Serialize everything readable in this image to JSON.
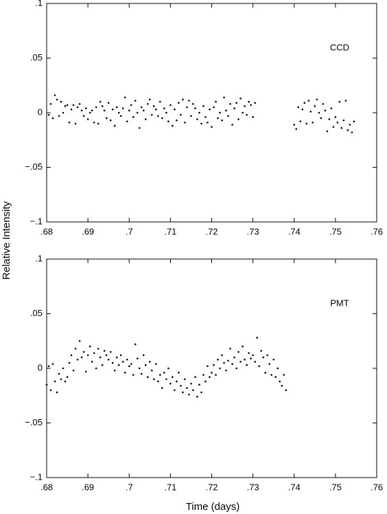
{
  "chart_data": [
    {
      "type": "scatter",
      "label": "CCD",
      "ylabel": "Relative Intensity",
      "color": "#000000",
      "xlim": [
        0.68,
        0.76
      ],
      "ylim": [
        -0.1,
        0.1
      ],
      "xticks": [
        {
          "value": 0.68,
          "label": ".68"
        },
        {
          "value": 0.69,
          "label": ".69"
        },
        {
          "value": 0.7,
          "label": ".7"
        },
        {
          "value": 0.71,
          "label": ".71"
        },
        {
          "value": 0.72,
          "label": ".72"
        },
        {
          "value": 0.73,
          "label": ".73"
        },
        {
          "value": 0.74,
          "label": ".74"
        },
        {
          "value": 0.75,
          "label": ".75"
        },
        {
          "value": 0.76,
          "label": ".76"
        }
      ],
      "yticks": [
        {
          "value": -0.1,
          "label": "−.1"
        },
        {
          "value": -0.05,
          "label": "−.05"
        },
        0,
        {
          "value": 0.05,
          "label": ".05"
        },
        {
          "value": 0.1,
          "label": ".1"
        }
      ],
      "x": [
        0.6805,
        0.681,
        0.6815,
        0.682,
        0.6825,
        0.683,
        0.6835,
        0.684,
        0.6845,
        0.685,
        0.6855,
        0.686,
        0.6865,
        0.687,
        0.6875,
        0.688,
        0.6885,
        0.689,
        0.6895,
        0.69,
        0.6905,
        0.691,
        0.6915,
        0.692,
        0.6925,
        0.693,
        0.6935,
        0.694,
        0.6945,
        0.695,
        0.6955,
        0.696,
        0.6965,
        0.697,
        0.6975,
        0.698,
        0.6985,
        0.699,
        0.6995,
        0.7,
        0.7005,
        0.701,
        0.7015,
        0.702,
        0.7025,
        0.703,
        0.7035,
        0.704,
        0.7045,
        0.705,
        0.7055,
        0.706,
        0.7065,
        0.707,
        0.7075,
        0.708,
        0.7085,
        0.709,
        0.7095,
        0.71,
        0.7105,
        0.711,
        0.7115,
        0.712,
        0.7125,
        0.713,
        0.7135,
        0.714,
        0.7145,
        0.715,
        0.7155,
        0.716,
        0.7165,
        0.717,
        0.7175,
        0.718,
        0.7185,
        0.719,
        0.7195,
        0.72,
        0.7205,
        0.721,
        0.7215,
        0.722,
        0.7225,
        0.723,
        0.7235,
        0.724,
        0.7245,
        0.725,
        0.7255,
        0.726,
        0.7265,
        0.727,
        0.7275,
        0.728,
        0.7285,
        0.729,
        0.7295,
        0.73,
        0.7305,
        0.74,
        0.7405,
        0.741,
        0.7415,
        0.742,
        0.7425,
        0.743,
        0.7435,
        0.744,
        0.7445,
        0.745,
        0.7455,
        0.746,
        0.7465,
        0.747,
        0.7475,
        0.748,
        0.7485,
        0.749,
        0.7495,
        0.75,
        0.7505,
        0.751,
        0.7515,
        0.752,
        0.7525,
        0.753,
        0.7535,
        0.754,
        0.7545
      ],
      "y": [
        -0.002,
        0.008,
        -0.005,
        0.016,
        0.012,
        -0.003,
        0.01,
        0.0,
        0.006,
        0.007,
        -0.009,
        0.003,
        0.007,
        -0.01,
        0.005,
        0.008,
        0.002,
        -0.003,
        0.004,
        -0.006,
        0.0,
        0.002,
        -0.009,
        0.005,
        -0.01,
        0.01,
        0.006,
        0.002,
        -0.005,
        0.009,
        -0.007,
        0.003,
        -0.012,
        0.005,
        0.0,
        -0.003,
        0.004,
        0.014,
        -0.008,
        0.002,
        0.007,
        -0.004,
        0.011,
        0.0,
        -0.014,
        0.005,
        0.002,
        -0.006,
        0.008,
        0.012,
        -0.002,
        0.006,
        0.003,
        -0.003,
        0.01,
        -0.005,
        0.004,
        0.0,
        -0.008,
        0.007,
        -0.012,
        0.003,
        -0.007,
        0.009,
        -0.002,
        0.012,
        -0.009,
        0.005,
        0.011,
        -0.003,
        0.008,
        0.004,
        -0.006,
        0.0,
        -0.01,
        0.006,
        -0.004,
        -0.009,
        0.003,
        -0.013,
        0.005,
        0.01,
        -0.005,
        0.0,
        -0.007,
        0.014,
        0.002,
        -0.003,
        0.008,
        -0.011,
        0.004,
        0.009,
        -0.006,
        0.013,
        0.0,
        0.006,
        -0.002,
        0.01,
        0.007,
        -0.004,
        0.009,
        -0.011,
        -0.015,
        0.005,
        -0.008,
        0.003,
        0.009,
        -0.01,
        0.011,
        0.001,
        -0.009,
        0.006,
        0.012,
        0.0,
        -0.005,
        0.008,
        0.002,
        -0.017,
        -0.006,
        0.004,
        -0.013,
        -0.004,
        -0.009,
        0.01,
        -0.014,
        -0.007,
        0.011,
        -0.016,
        -0.011,
        -0.018,
        -0.008
      ]
    },
    {
      "type": "scatter",
      "label": "PMT",
      "xlabel": "Time (days)",
      "color": "#000000",
      "xlim": [
        0.68,
        0.76
      ],
      "ylim": [
        -0.1,
        0.1
      ],
      "xticks": [
        {
          "value": 0.68,
          "label": ".68"
        },
        {
          "value": 0.69,
          "label": ".69"
        },
        {
          "value": 0.7,
          "label": ".7"
        },
        {
          "value": 0.71,
          "label": ".71"
        },
        {
          "value": 0.72,
          "label": ".72"
        },
        {
          "value": 0.73,
          "label": ".73"
        },
        {
          "value": 0.74,
          "label": ".74"
        },
        {
          "value": 0.75,
          "label": ".75"
        },
        {
          "value": 0.76,
          "label": ".76"
        }
      ],
      "yticks": [
        {
          "value": -0.1,
          "label": "−.1"
        },
        {
          "value": -0.05,
          "label": "−.05"
        },
        0,
        {
          "value": 0.05,
          "label": ".05"
        },
        {
          "value": 0.1,
          "label": ".1"
        }
      ],
      "x": [
        0.68,
        0.6805,
        0.681,
        0.6815,
        0.682,
        0.6825,
        0.683,
        0.6835,
        0.684,
        0.6845,
        0.685,
        0.6855,
        0.686,
        0.6865,
        0.687,
        0.6875,
        0.688,
        0.6885,
        0.689,
        0.6895,
        0.69,
        0.6905,
        0.691,
        0.6915,
        0.692,
        0.6925,
        0.693,
        0.6935,
        0.694,
        0.6945,
        0.695,
        0.6955,
        0.696,
        0.6965,
        0.697,
        0.6975,
        0.698,
        0.6985,
        0.699,
        0.6995,
        0.7,
        0.7005,
        0.701,
        0.7015,
        0.702,
        0.7025,
        0.703,
        0.7035,
        0.704,
        0.7045,
        0.705,
        0.7055,
        0.706,
        0.7065,
        0.707,
        0.7075,
        0.708,
        0.7085,
        0.709,
        0.7095,
        0.71,
        0.7105,
        0.711,
        0.7115,
        0.712,
        0.7125,
        0.713,
        0.7135,
        0.714,
        0.7145,
        0.715,
        0.7155,
        0.716,
        0.7165,
        0.717,
        0.7175,
        0.718,
        0.7185,
        0.719,
        0.7195,
        0.72,
        0.7205,
        0.721,
        0.7215,
        0.722,
        0.7225,
        0.723,
        0.7235,
        0.724,
        0.7245,
        0.725,
        0.7255,
        0.726,
        0.7265,
        0.727,
        0.7275,
        0.728,
        0.7285,
        0.729,
        0.7295,
        0.73,
        0.7305,
        0.731,
        0.7315,
        0.732,
        0.7325,
        0.733,
        0.7335,
        0.734,
        0.7345,
        0.735,
        0.7355,
        0.736,
        0.7365,
        0.737,
        0.7375,
        0.738
      ],
      "y": [
        -0.015,
        0.002,
        -0.02,
        0.004,
        -0.012,
        -0.022,
        -0.005,
        -0.01,
        0.0,
        -0.012,
        -0.008,
        0.005,
        0.012,
        -0.002,
        0.018,
        0.008,
        0.025,
        0.01,
        0.015,
        -0.003,
        0.012,
        0.02,
        0.006,
        0.014,
        0.0,
        0.018,
        0.01,
        0.003,
        0.016,
        0.012,
        0.008,
        0.015,
        0.005,
        -0.002,
        0.01,
        0.003,
        0.012,
        0.006,
        -0.004,
        0.008,
        0.002,
        0.004,
        -0.006,
        0.022,
        0.009,
        0.0,
        -0.005,
        0.012,
        0.003,
        -0.008,
        0.006,
        -0.002,
        -0.01,
        0.004,
        -0.012,
        -0.006,
        -0.018,
        -0.004,
        -0.01,
        0.0,
        -0.014,
        -0.008,
        -0.02,
        -0.012,
        -0.004,
        -0.016,
        -0.022,
        -0.01,
        -0.018,
        -0.024,
        -0.014,
        -0.02,
        -0.008,
        -0.026,
        -0.015,
        -0.022,
        -0.006,
        -0.012,
        0.002,
        -0.008,
        -0.004,
        0.003,
        -0.006,
        0.008,
        0.0,
        0.012,
        0.005,
        -0.002,
        0.007,
        0.018,
        0.004,
        0.01,
        0.0,
        0.015,
        0.006,
        0.02,
        0.008,
        0.003,
        0.014,
        0.009,
        0.012,
        0.006,
        0.028,
        0.002,
        0.016,
        0.01,
        -0.004,
        0.012,
        0.004,
        -0.006,
        0.008,
        -0.008,
        0.0,
        -0.012,
        -0.016,
        -0.006,
        -0.02
      ]
    }
  ]
}
